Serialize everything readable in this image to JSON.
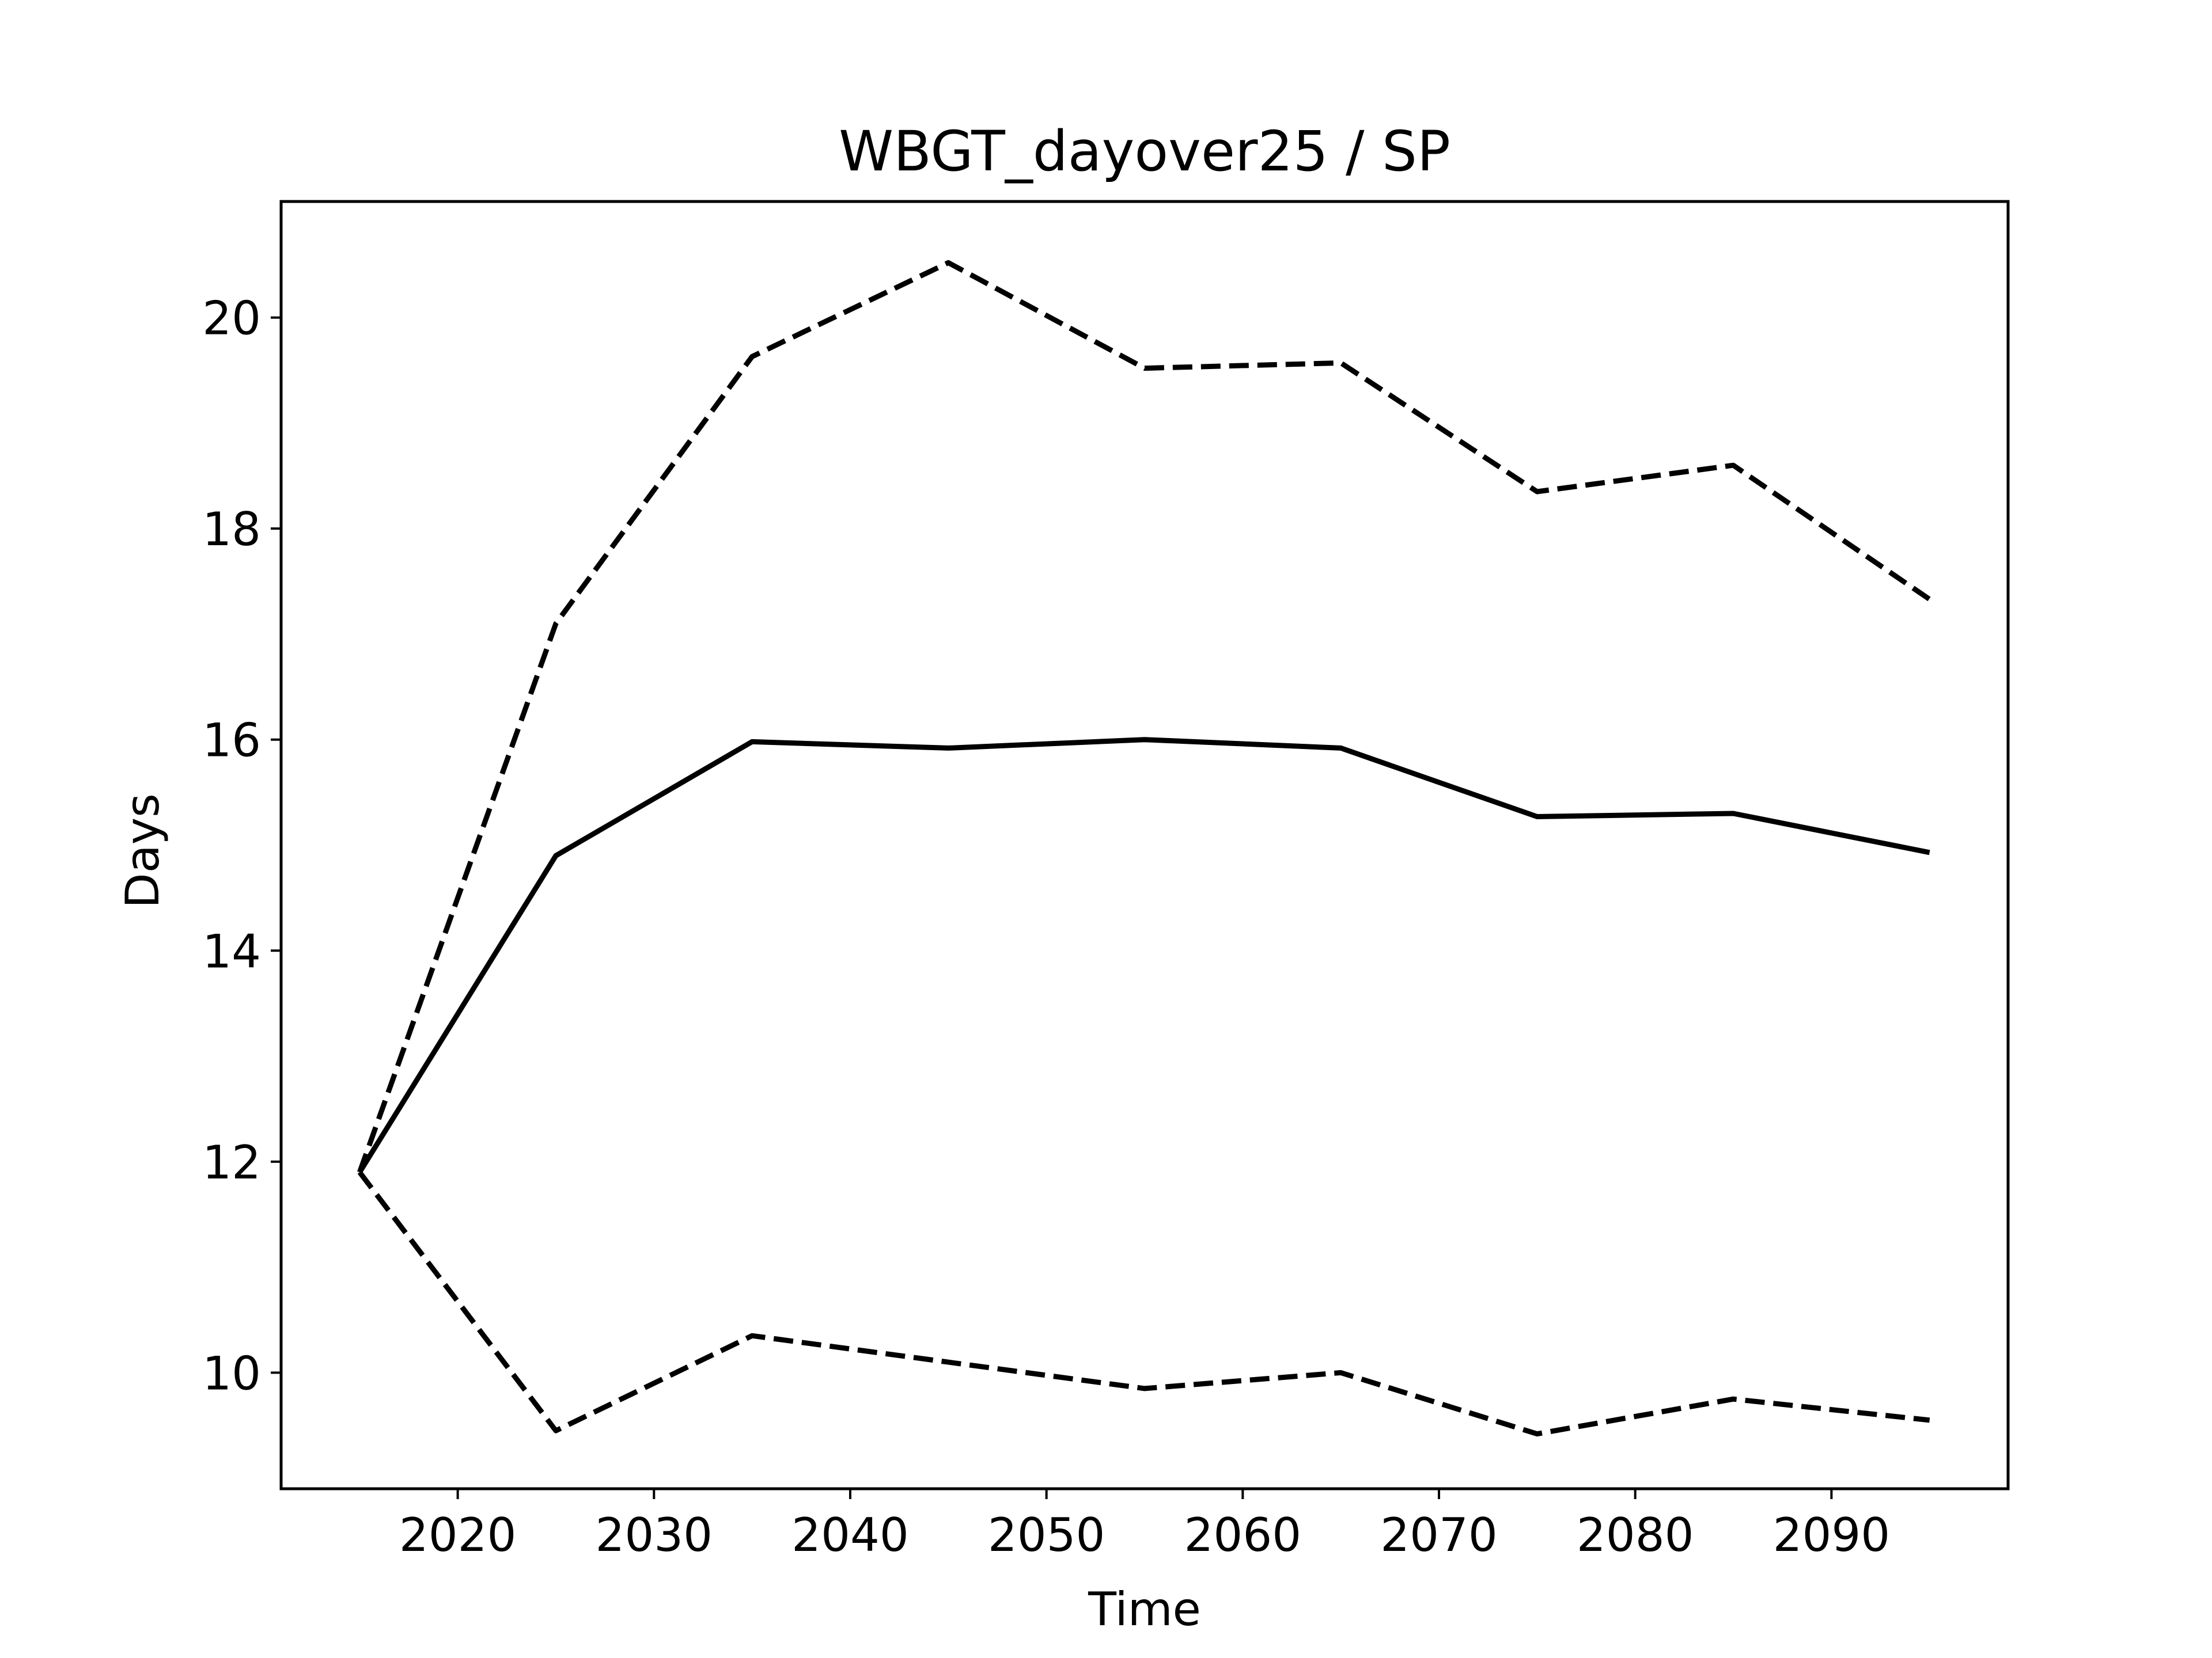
{
  "chart_data": {
    "type": "line",
    "title": "WBGT_dayover25 / SP",
    "xlabel": "Time",
    "ylabel": "Days",
    "xlim": [
      2011,
      2099
    ],
    "ylim": [
      8.9,
      21.1
    ],
    "x_ticks": [
      2020,
      2030,
      2040,
      2050,
      2060,
      2070,
      2080,
      2090
    ],
    "y_ticks": [
      10,
      12,
      14,
      16,
      18,
      20
    ],
    "grid": false,
    "legend": "none",
    "x": [
      2015,
      2025,
      2035,
      2045,
      2055,
      2065,
      2075,
      2085,
      2095
    ],
    "series": [
      {
        "style": "solid",
        "color": "#000000",
        "values": [
          11.9,
          14.9,
          15.98,
          15.92,
          16.0,
          15.92,
          15.27,
          15.3,
          14.93
        ]
      },
      {
        "style": "dashed",
        "color": "#000000",
        "values": [
          11.9,
          17.1,
          19.63,
          20.52,
          19.52,
          19.57,
          18.35,
          18.6,
          17.33
        ]
      },
      {
        "style": "dashed",
        "color": "#000000",
        "values": [
          11.9,
          9.45,
          10.35,
          10.1,
          9.85,
          10.0,
          9.42,
          9.75,
          9.55
        ]
      }
    ]
  }
}
